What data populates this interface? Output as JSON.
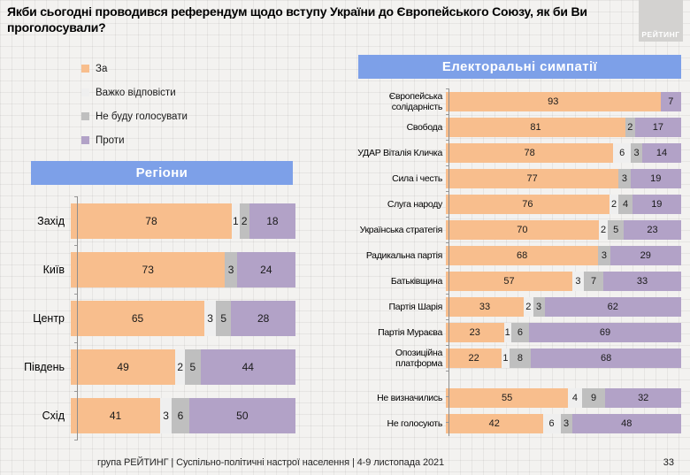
{
  "page": {
    "title": "Якби сьогодні проводився референдум щодо вступу України до Європейського Союзу, як би Ви проголосували?",
    "logo_text": "РЕЙТИНГ",
    "footer_text": "група РЕЙТИНГ | Суспільно-політичні настрої населення  | 4-9 листопада 2021",
    "page_number": "33"
  },
  "colors": {
    "series": [
      "#F8BE8D",
      "#EFEFEF",
      "#BFBFBF",
      "#B2A2C7"
    ],
    "series_keys": [
      "za",
      "vazhko-vidpovisty",
      "ne-budu-holosuvaty",
      "proty"
    ],
    "banner": "#7DA0E8",
    "logo_bg": "#D3D2D0"
  },
  "legend": {
    "items": [
      {
        "label": "За"
      },
      {
        "label": "Важко відповісти"
      },
      {
        "label": "Не буду голосувати"
      },
      {
        "label": "Проти"
      }
    ]
  },
  "chart_data": [
    {
      "type": "bar",
      "stacked": true,
      "orientation": "horizontal",
      "title": "Регіони",
      "grid": false,
      "xlim": [
        0,
        100
      ],
      "unit": "%",
      "categories": [
        "Захід",
        "Київ",
        "Центр",
        "Південь",
        "Схід"
      ],
      "series": [
        {
          "name": "За",
          "values": [
            78,
            73,
            65,
            49,
            41
          ]
        },
        {
          "name": "Важко відповісти",
          "values": [
            1,
            0,
            3,
            2,
            3
          ]
        },
        {
          "name": "Не буду голосувати",
          "values": [
            2,
            3,
            5,
            5,
            6
          ]
        },
        {
          "name": "Проти",
          "values": [
            18,
            24,
            28,
            44,
            50
          ]
        }
      ]
    },
    {
      "type": "bar",
      "stacked": true,
      "orientation": "horizontal",
      "title": "Електоральні симпатії",
      "grid": false,
      "xlim": [
        0,
        100
      ],
      "unit": "%",
      "gap_after_index": 10,
      "categories": [
        "Європейська солідарність",
        "Свобода",
        "УДАР Віталія Кличка",
        "Сила і честь",
        "Слуга народу",
        "Українська стратегія",
        "Радикальна партія",
        "Батьківщина",
        "Партія Шарія",
        "Партія Мураєва",
        "Опозиційна платформа",
        "Не визначились",
        "Не голосують"
      ],
      "series": [
        {
          "name": "За",
          "values": [
            93,
            81,
            78,
            77,
            76,
            70,
            68,
            57,
            33,
            23,
            22,
            55,
            42
          ]
        },
        {
          "name": "Важко відповісти",
          "values": [
            0,
            0,
            6,
            0,
            2,
            2,
            0,
            3,
            2,
            1,
            1,
            4,
            6
          ]
        },
        {
          "name": "Не буду голосувати",
          "values": [
            0,
            2,
            3,
            3,
            4,
            5,
            3,
            7,
            3,
            6,
            8,
            9,
            3
          ]
        },
        {
          "name": "Проти",
          "values": [
            7,
            17,
            14,
            19,
            19,
            23,
            29,
            33,
            62,
            69,
            68,
            32,
            48
          ]
        }
      ]
    }
  ]
}
